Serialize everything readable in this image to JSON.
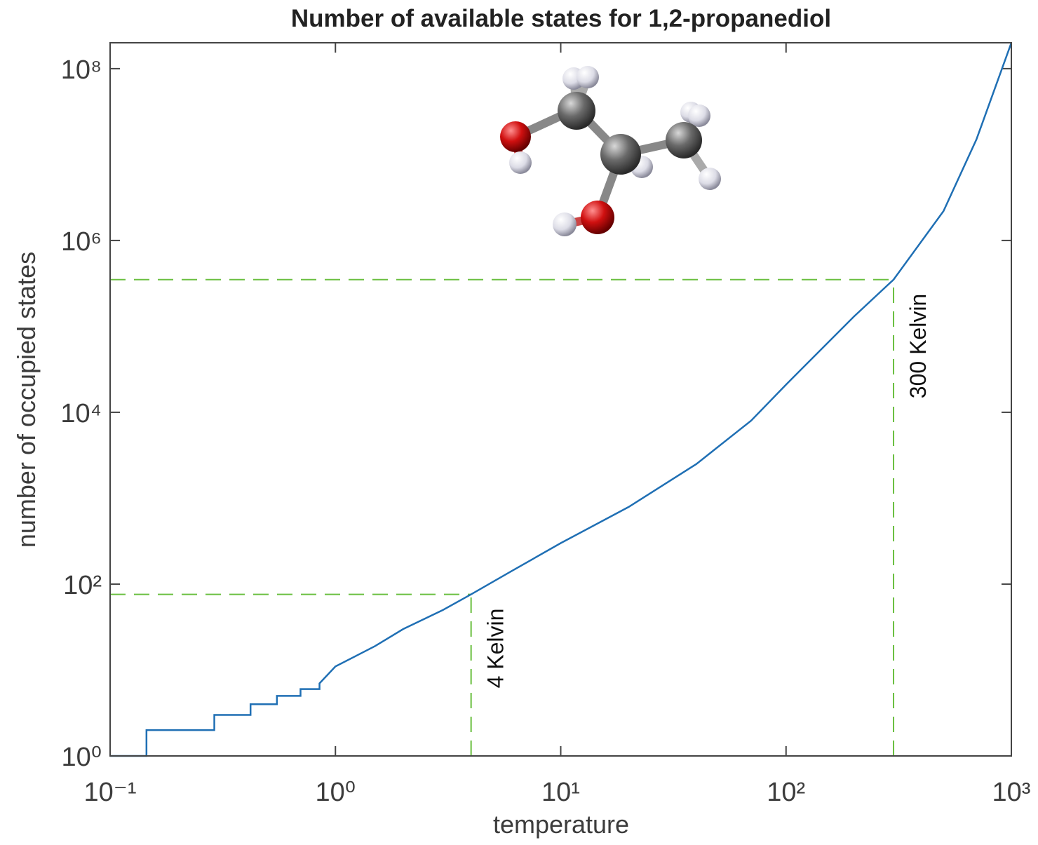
{
  "chart_data": {
    "type": "line",
    "title": "Number of available states for 1,2-propanediol",
    "xlabel": "temperature",
    "ylabel": "number of occupied states",
    "x": [
      0.1,
      0.145,
      0.145,
      0.29,
      0.29,
      0.42,
      0.42,
      0.55,
      0.55,
      0.7,
      0.7,
      0.85,
      0.85,
      1,
      1.5,
      2,
      3,
      4,
      6,
      10,
      20,
      40,
      70,
      100,
      200,
      300,
      500,
      700,
      1000
    ],
    "values": [
      1,
      1,
      2,
      2,
      3,
      3,
      4,
      4,
      5,
      5,
      6,
      6,
      7,
      11,
      19,
      30,
      50,
      76,
      140,
      300,
      790,
      2500,
      8000,
      21000,
      130000,
      350000,
      2200000,
      15000000,
      200000000
    ],
    "color": "#1f6fb4",
    "xscale": "log",
    "yscale": "log",
    "xlim": [
      0.1,
      1000
    ],
    "ylim": [
      1,
      200000000
    ],
    "xticks": [
      {
        "value": 0.1,
        "label": "10⁻¹"
      },
      {
        "value": 1,
        "label": "10⁰"
      },
      {
        "value": 10,
        "label": "10¹"
      },
      {
        "value": 100,
        "label": "10²"
      },
      {
        "value": 1000,
        "label": "10³"
      }
    ],
    "yticks": [
      {
        "value": 1,
        "label": "10⁰"
      },
      {
        "value": 100,
        "label": "10²"
      },
      {
        "value": 10000,
        "label": "10⁴"
      },
      {
        "value": 1000000,
        "label": "10⁶"
      },
      {
        "value": 100000000,
        "label": "10⁸"
      }
    ],
    "annotation_color": "#6abf40",
    "annotations": [
      {
        "text": "4 Kelvin",
        "x": 4,
        "y": 76
      },
      {
        "text": "300 Kelvin",
        "x": 300,
        "y": 350000
      }
    ]
  }
}
